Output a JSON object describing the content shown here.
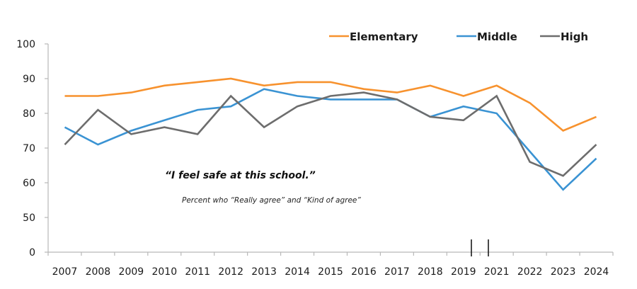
{
  "chart_data": {
    "type": "line",
    "title": "“I feel safe at this school.”",
    "subtitle": "Percent who “Really agree” and “Kind of agree”",
    "xlabel": "",
    "ylabel": "",
    "categories": [
      "2007",
      "2008",
      "2009",
      "2010",
      "2011",
      "2012",
      "2013",
      "2014",
      "2015",
      "2016",
      "2017",
      "2018",
      "2019",
      "2021",
      "2022",
      "2023",
      "2024"
    ],
    "y_ticks": [
      0,
      50,
      60,
      70,
      80,
      90,
      100
    ],
    "y_tick_labels": [
      "0",
      "50",
      "60",
      "70",
      "80",
      "90",
      "100"
    ],
    "ylim": [
      0,
      100
    ],
    "y_axis_break": "between 0 and 50",
    "x_axis_break": "between 2019 and 2021",
    "grid": false,
    "legend_position": "top-right",
    "series": [
      {
        "name": "Elementary",
        "color": "#F7922E",
        "values": [
          85,
          85,
          86,
          88,
          89,
          90,
          88,
          89,
          89,
          87,
          86,
          88,
          85,
          88,
          83,
          75,
          79
        ]
      },
      {
        "name": "Middle",
        "color": "#3A93D3",
        "values": [
          76,
          71,
          75,
          78,
          81,
          82,
          87,
          85,
          84,
          84,
          84,
          79,
          82,
          80,
          69,
          58,
          67
        ]
      },
      {
        "name": "High",
        "color": "#6D6D6D",
        "values": [
          71,
          81,
          74,
          76,
          74,
          85,
          76,
          82,
          85,
          86,
          84,
          79,
          78,
          85,
          66,
          62,
          71
        ]
      }
    ]
  }
}
